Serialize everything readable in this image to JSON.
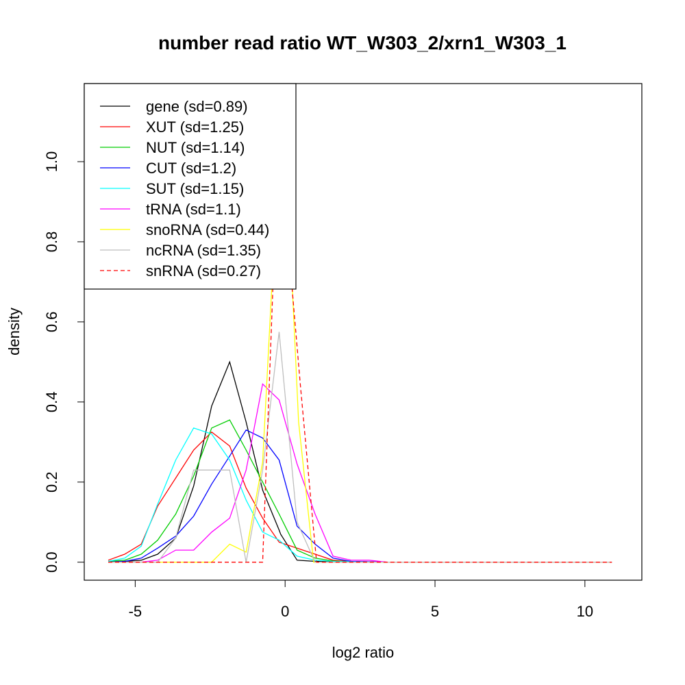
{
  "chart_data": {
    "type": "line",
    "title": "number read ratio WT_W303_2/xrn1_W303_1",
    "xlabel": "log2 ratio",
    "ylabel": "density",
    "xlim": [
      -6.7,
      11.9
    ],
    "ylim": [
      -0.045,
      1.195
    ],
    "xticks": [
      -5,
      0,
      5,
      10
    ],
    "xtick_labels": [
      "-5",
      "0",
      "5",
      "10"
    ],
    "yticks": [
      0.0,
      0.2,
      0.4,
      0.6,
      0.8,
      1.0
    ],
    "ytick_labels": [
      "0.0",
      "0.2",
      "0.4",
      "0.6",
      "0.8",
      "1.0"
    ],
    "grid": false,
    "legend_position": "top-left",
    "series": [
      {
        "name": "gene (sd=0.89)",
        "color": "#000000",
        "dash": "solid",
        "x": [
          -5.9,
          -5.35,
          -4.8,
          -4.25,
          -3.65,
          -3.05,
          -2.45,
          -1.85,
          -1.3,
          -0.75,
          -0.2,
          -0.15,
          0.4,
          1.0,
          1.6,
          2.2,
          2.8,
          3.4,
          10.9
        ],
        "y": [
          0.0,
          0.002,
          0.005,
          0.02,
          0.06,
          0.19,
          0.39,
          0.5,
          0.35,
          0.18,
          0.08,
          0.07,
          0.005,
          0.002,
          0.001,
          0.0,
          0.0,
          0.0,
          0.0
        ]
      },
      {
        "name": "XUT (sd=1.25)",
        "color": "#ff0000",
        "dash": "solid",
        "x": [
          -5.9,
          -5.35,
          -4.8,
          -4.25,
          -3.65,
          -3.05,
          -2.45,
          -1.85,
          -1.3,
          -0.75,
          -0.2,
          0.4,
          1.0,
          1.6,
          2.2,
          2.8,
          3.4,
          10.9
        ],
        "y": [
          0.005,
          0.02,
          0.045,
          0.14,
          0.21,
          0.28,
          0.325,
          0.29,
          0.185,
          0.11,
          0.05,
          0.035,
          0.02,
          0.005,
          0.002,
          0.001,
          0.0,
          0.0
        ]
      },
      {
        "name": "NUT (sd=1.14)",
        "color": "#00cd00",
        "dash": "solid",
        "x": [
          -5.9,
          -5.35,
          -4.8,
          -4.25,
          -3.65,
          -3.05,
          -2.45,
          -1.85,
          -1.3,
          -0.75,
          -0.2,
          0.4,
          1.0,
          1.6,
          2.2,
          2.8,
          3.4,
          10.9
        ],
        "y": [
          0.002,
          0.005,
          0.02,
          0.055,
          0.12,
          0.215,
          0.335,
          0.355,
          0.28,
          0.2,
          0.12,
          0.03,
          0.01,
          0.003,
          0.001,
          0.0,
          0.0,
          0.0
        ]
      },
      {
        "name": "CUT (sd=1.2)",
        "color": "#0000ff",
        "dash": "solid",
        "x": [
          -5.9,
          -5.35,
          -4.8,
          -4.25,
          -3.65,
          -3.05,
          -2.45,
          -1.85,
          -1.3,
          -0.75,
          -0.2,
          0.4,
          1.0,
          1.6,
          2.2,
          2.8,
          3.4,
          10.9
        ],
        "y": [
          0.0,
          0.002,
          0.01,
          0.035,
          0.065,
          0.115,
          0.195,
          0.265,
          0.33,
          0.31,
          0.255,
          0.09,
          0.045,
          0.01,
          0.002,
          0.001,
          0.0,
          0.0
        ]
      },
      {
        "name": "SUT (sd=1.15)",
        "color": "#00ffff",
        "dash": "solid",
        "x": [
          -5.9,
          -5.35,
          -4.8,
          -4.25,
          -3.65,
          -3.05,
          -2.45,
          -1.85,
          -1.3,
          -0.75,
          -0.2,
          0.4,
          1.0,
          1.6,
          2.2,
          2.8,
          3.4,
          10.9
        ],
        "y": [
          0.002,
          0.01,
          0.04,
          0.145,
          0.255,
          0.335,
          0.32,
          0.255,
          0.155,
          0.075,
          0.055,
          0.015,
          0.005,
          0.002,
          0.001,
          0.0,
          0.0,
          0.0
        ]
      },
      {
        "name": "tRNA (sd=1.1)",
        "color": "#ff00ff",
        "dash": "solid",
        "x": [
          -5.9,
          -4.8,
          -4.25,
          -3.65,
          -3.05,
          -2.45,
          -1.85,
          -1.3,
          -0.75,
          -0.2,
          0.4,
          1.0,
          1.6,
          2.2,
          2.8,
          3.4,
          10.9
        ],
        "y": [
          0.0,
          0.0,
          0.005,
          0.03,
          0.03,
          0.075,
          0.11,
          0.23,
          0.445,
          0.405,
          0.245,
          0.12,
          0.015,
          0.005,
          0.005,
          0.0,
          0.0
        ]
      },
      {
        "name": "snoRNA (sd=0.44)",
        "color": "#ffff00",
        "dash": "solid",
        "x": [
          -5.9,
          -2.45,
          -1.85,
          -1.3,
          -0.75,
          -0.4,
          -0.2,
          0.2,
          0.45,
          0.95,
          1.6,
          10.9
        ],
        "y": [
          0.0,
          0.0,
          0.045,
          0.025,
          0.25,
          0.75,
          0.8,
          0.75,
          0.35,
          0.0,
          0.0,
          0.0
        ]
      },
      {
        "name": "ncRNA (sd=1.35)",
        "color": "#bebebe",
        "dash": "solid",
        "x": [
          -5.9,
          -4.8,
          -4.25,
          -3.65,
          -3.05,
          -2.45,
          -1.85,
          -1.3,
          -0.75,
          -0.2,
          0.4,
          1.0,
          1.6,
          10.9
        ],
        "y": [
          0.0,
          0.0,
          0.0,
          0.06,
          0.23,
          0.23,
          0.23,
          0.0,
          0.23,
          0.575,
          0.1,
          0.0,
          0.0,
          0.0
        ]
      },
      {
        "name": "snRNA (sd=0.27)",
        "color": "#ff0000",
        "dash": "dashed",
        "x": [
          -5.9,
          -0.75,
          -0.4,
          -0.2,
          0.1,
          0.5,
          0.95,
          1.05,
          10.9
        ],
        "y": [
          0.0,
          0.0,
          0.7,
          0.79,
          0.8,
          0.45,
          0.08,
          0.0,
          0.0
        ]
      }
    ]
  }
}
